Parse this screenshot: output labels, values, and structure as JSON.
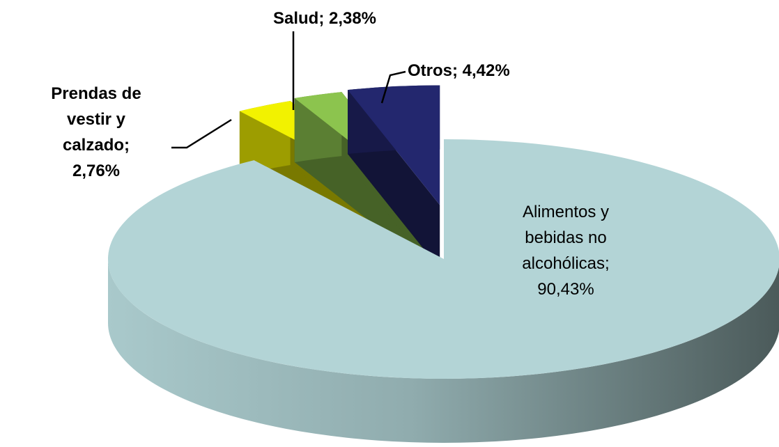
{
  "chart_data": {
    "type": "pie",
    "values": [
      90.43,
      2.76,
      2.38,
      4.42
    ],
    "value_labels": [
      "Alimentos y bebidas no alcohólicas; 90,43%",
      "Prendas de vestir y calzado; 2,76%",
      "Salud; 2,38%",
      "Otros; 4,42%"
    ],
    "colors": [
      "#b3d4d6",
      "#f2f200",
      "#8cc44e",
      "#23276e"
    ]
  }
}
